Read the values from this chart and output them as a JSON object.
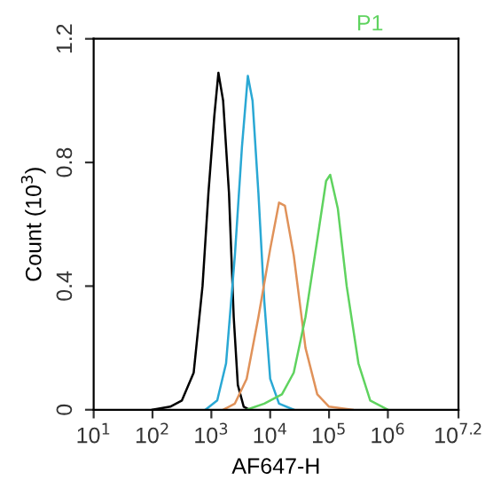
{
  "chart_data": {
    "type": "line",
    "xlabel": "AF647-H",
    "ylabel": "Count (10$^{3}$)",
    "log": "x",
    "grid": false,
    "marker": "none",
    "line_style": "solid",
    "annotations": [
      "P1"
    ],
    "xlim": [
      10,
      15848932
    ],
    "ylim": [
      0,
      1.2
    ],
    "xticks": [
      {
        "value": 10,
        "label": "10$^{1}$"
      },
      {
        "value": 100,
        "label": "10$^{2}$"
      },
      {
        "value": 1000,
        "label": "10$^{3}$"
      },
      {
        "value": 10000,
        "label": "10$^{4}$"
      },
      {
        "value": 100000,
        "label": "10$^{5}$"
      },
      {
        "value": 1000000,
        "label": "10$^{6}$"
      },
      {
        "value": 15848932,
        "label": "10$^{7.2}$"
      }
    ],
    "yticks": [
      0,
      0.4,
      0.8,
      1.2
    ],
    "series": [
      {
        "color": "#000000",
        "x": [
          100,
          200,
          316,
          501,
          708,
          891,
          1122,
          1318,
          1585,
          1995,
          2399,
          2818,
          3548,
          4467
        ],
        "values": [
          0,
          0.01,
          0.03,
          0.12,
          0.4,
          0.7,
          0.95,
          1.09,
          1.0,
          0.7,
          0.3,
          0.08,
          0.01,
          0
        ]
      },
      {
        "color": "#2aa8d4",
        "x": [
          794,
          1259,
          1778,
          2512,
          3311,
          4169,
          5012,
          6310,
          7943,
          10000,
          14125,
          25119
        ],
        "values": [
          0,
          0.03,
          0.15,
          0.5,
          0.85,
          1.08,
          1.0,
          0.7,
          0.35,
          0.1,
          0.02,
          0
        ]
      },
      {
        "color": "#e0925a",
        "x": [
          1585,
          2512,
          3981,
          6310,
          10000,
          14125,
          17783,
          25119,
          39811,
          63096,
          100000,
          251189
        ],
        "values": [
          0,
          0.02,
          0.1,
          0.3,
          0.52,
          0.67,
          0.66,
          0.5,
          0.2,
          0.05,
          0.01,
          0
        ]
      },
      {
        "color": "#5fd35f",
        "x": [
          3981,
          7943,
          15849,
          25119,
          39811,
          63096,
          89125,
          104713,
          141254,
          199526,
          316228,
          501187,
          1000000
        ],
        "values": [
          0,
          0.02,
          0.05,
          0.12,
          0.3,
          0.55,
          0.74,
          0.76,
          0.65,
          0.4,
          0.15,
          0.03,
          0
        ]
      }
    ]
  }
}
